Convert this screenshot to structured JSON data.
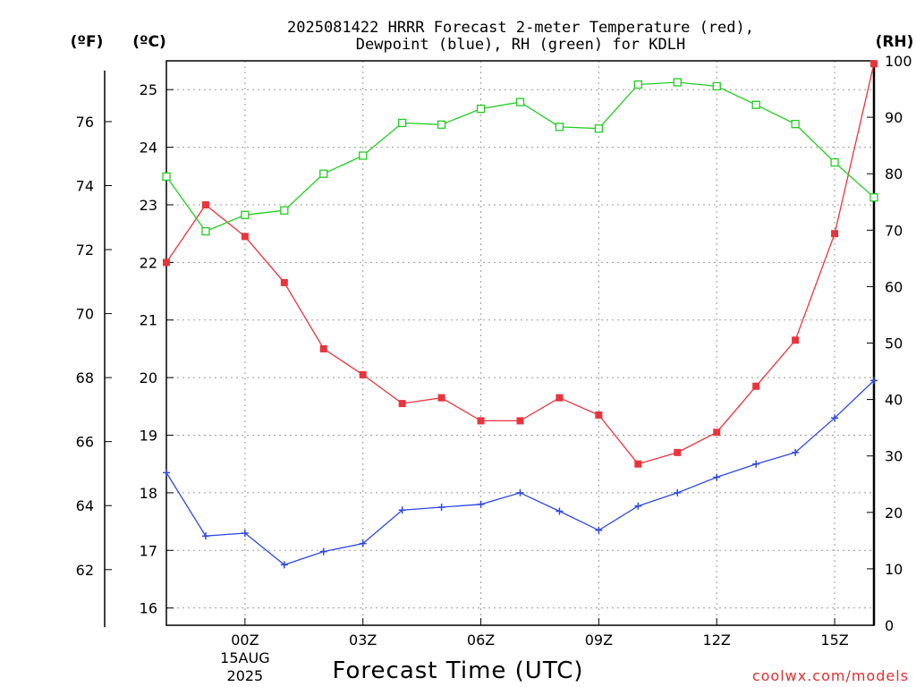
{
  "chart_data": {
    "type": "line",
    "title_line1": "2025081422 HRRR Forecast 2-meter Temperature (red),",
    "title_line2": "Dewpoint (blue), RH (green) for KDLH",
    "xlabel": "Forecast Time (UTC)",
    "unit_f": "(ºF)",
    "unit_c": "(ºC)",
    "unit_rh": "(RH)",
    "credit": "coolwx.com/models",
    "x_hours": [
      -2,
      -1,
      0,
      1,
      2,
      3,
      4,
      5,
      6,
      7,
      8,
      9,
      10,
      11,
      12,
      13,
      14,
      15,
      16
    ],
    "x_ticks": [
      {
        "hour": 0,
        "label": "00Z",
        "sub1": "15AUG",
        "sub2": "2025"
      },
      {
        "hour": 3,
        "label": "03Z",
        "sub1": "",
        "sub2": ""
      },
      {
        "hour": 6,
        "label": "06Z",
        "sub1": "",
        "sub2": ""
      },
      {
        "hour": 9,
        "label": "09Z",
        "sub1": "",
        "sub2": ""
      },
      {
        "hour": 12,
        "label": "12Z",
        "sub1": "",
        "sub2": ""
      },
      {
        "hour": 15,
        "label": "15Z",
        "sub1": "",
        "sub2": ""
      }
    ],
    "c_ylim": [
      15.7,
      25.5
    ],
    "c_ticks": [
      16,
      17,
      18,
      19,
      20,
      21,
      22,
      23,
      24,
      25
    ],
    "f_ticks": [
      62,
      64,
      66,
      68,
      70,
      72,
      74,
      76
    ],
    "rh_ylim": [
      0,
      100
    ],
    "rh_ticks": [
      0,
      10,
      20,
      30,
      40,
      50,
      60,
      70,
      80,
      90,
      100
    ],
    "grid": true,
    "series": [
      {
        "name": "Temperature",
        "color": "#e8343c",
        "axis": "C",
        "marker": "filled-square",
        "values": [
          22.0,
          23.0,
          22.45,
          21.65,
          20.5,
          20.05,
          19.55,
          19.65,
          19.25,
          19.25,
          19.65,
          19.35,
          18.5,
          18.7,
          19.05,
          19.85,
          20.65,
          22.5,
          25.45
        ]
      },
      {
        "name": "Dewpoint",
        "color": "#2f48e0",
        "axis": "C",
        "marker": "plus",
        "values": [
          18.35,
          17.25,
          17.3,
          16.75,
          16.98,
          17.12,
          17.7,
          17.75,
          17.8,
          18.0,
          17.68,
          17.35,
          17.77,
          18.0,
          18.27,
          18.5,
          18.7,
          19.3,
          19.95
        ]
      },
      {
        "name": "RH",
        "color": "#22cc22",
        "axis": "RH",
        "marker": "open-square",
        "values": [
          79.5,
          69.8,
          72.7,
          73.5,
          80.0,
          83.2,
          89.0,
          88.7,
          91.5,
          92.7,
          88.3,
          88.0,
          95.8,
          96.2,
          95.5,
          92.2,
          88.8,
          82.0,
          75.8
        ]
      }
    ]
  }
}
